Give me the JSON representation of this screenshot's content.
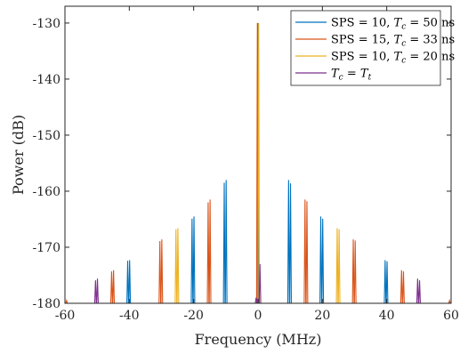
{
  "chart_data": {
    "type": "line",
    "xlabel": "Frequency (MHz)",
    "ylabel": "Power (dB)",
    "xlim": [
      -60,
      60
    ],
    "ylim": [
      -180,
      -127
    ],
    "xticks": [
      -60,
      -40,
      -20,
      0,
      20,
      40,
      60
    ],
    "xtick_labels": [
      "-60",
      "-40",
      "-20",
      "0",
      "20",
      "40",
      "60"
    ],
    "yticks": [
      -180,
      -170,
      -160,
      -150,
      -140,
      -130
    ],
    "ytick_labels": [
      "-180",
      "-170",
      "-160",
      "-150",
      "-140",
      "-130"
    ],
    "grid": false,
    "legend_position": "top-right",
    "series": [
      {
        "name": "SPS = 10, Tc = 50 ns",
        "legend_parts": [
          {
            "t": "SPS = 10, "
          },
          {
            "t": "T",
            "i": true
          },
          {
            "t": "c",
            "sub": true,
            "i": true
          },
          {
            "t": " = 50 ns"
          }
        ],
        "color": "#0072BD",
        "spikes": [
          {
            "x": 0,
            "y": -130
          },
          {
            "x": -10.5,
            "y": -158.5
          },
          {
            "x": -9.9,
            "y": -158.0
          },
          {
            "x": 9.5,
            "y": -158.0
          },
          {
            "x": 10.1,
            "y": -158.6
          },
          {
            "x": -20.5,
            "y": -164.9
          },
          {
            "x": -19.9,
            "y": -164.5
          },
          {
            "x": 19.5,
            "y": -164.5
          },
          {
            "x": 20.1,
            "y": -164.9
          },
          {
            "x": -40.5,
            "y": -172.4
          },
          {
            "x": -39.9,
            "y": -172.3
          },
          {
            "x": 39.5,
            "y": -172.3
          },
          {
            "x": 40.1,
            "y": -172.5
          }
        ]
      },
      {
        "name": "SPS = 15, Tc = 33 ns",
        "legend_parts": [
          {
            "t": "SPS = 15, "
          },
          {
            "t": "T",
            "i": true
          },
          {
            "t": "c",
            "sub": true,
            "i": true
          },
          {
            "t": " = 33 ns"
          }
        ],
        "color": "#D95319",
        "spikes": [
          {
            "x": -0.2,
            "y": -130
          },
          {
            "x": -15.5,
            "y": -162.0
          },
          {
            "x": -14.9,
            "y": -161.5
          },
          {
            "x": 14.6,
            "y": -161.5
          },
          {
            "x": 15.2,
            "y": -161.8
          },
          {
            "x": -30.5,
            "y": -168.9
          },
          {
            "x": -29.9,
            "y": -168.6
          },
          {
            "x": 29.6,
            "y": -168.6
          },
          {
            "x": 30.2,
            "y": -168.8
          },
          {
            "x": -45.5,
            "y": -174.3
          },
          {
            "x": -44.9,
            "y": -174.1
          },
          {
            "x": 44.6,
            "y": -174.1
          },
          {
            "x": 45.2,
            "y": -174.3
          },
          {
            "x": -59.5,
            "y": -179.5
          },
          {
            "x": 59.5,
            "y": -179.5
          }
        ]
      },
      {
        "name": "SPS = 10, Tc = 20 ns",
        "legend_parts": [
          {
            "t": "SPS = 10, "
          },
          {
            "t": "T",
            "i": true
          },
          {
            "t": "c",
            "sub": true,
            "i": true
          },
          {
            "t": " = 20 ns"
          }
        ],
        "color": "#EDB120",
        "spikes": [
          {
            "x": 0.2,
            "y": -130
          },
          {
            "x": -25.5,
            "y": -166.8
          },
          {
            "x": -24.9,
            "y": -166.6
          },
          {
            "x": 24.6,
            "y": -166.6
          },
          {
            "x": 25.2,
            "y": -166.8
          }
        ]
      },
      {
        "name": "Tc = Tt",
        "legend_parts": [
          {
            "t": "T",
            "i": true
          },
          {
            "t": "c",
            "sub": true,
            "i": true
          },
          {
            "t": " = "
          },
          {
            "t": "T",
            "i": true
          },
          {
            "t": "t",
            "sub": true,
            "i": true
          }
        ],
        "color": "#7E2F8E",
        "spikes": [
          {
            "x": 0.6,
            "y": -173
          },
          {
            "x": -0.6,
            "y": -179
          },
          {
            "x": -50.5,
            "y": -175.9
          },
          {
            "x": -49.9,
            "y": -175.6
          },
          {
            "x": 49.6,
            "y": -175.6
          },
          {
            "x": 50.2,
            "y": -175.9
          }
        ]
      }
    ]
  }
}
